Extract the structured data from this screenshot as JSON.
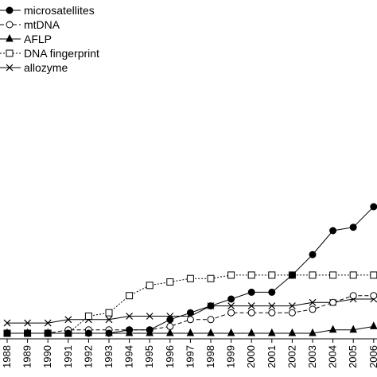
{
  "chart_data": {
    "type": "line",
    "title": "",
    "xlabel": "",
    "ylabel": "",
    "x": [
      1988,
      1989,
      1990,
      1991,
      1992,
      1993,
      1994,
      1995,
      1996,
      1997,
      1998,
      1999,
      2000,
      2001,
      2002,
      2003,
      2004,
      2005,
      2006
    ],
    "x_tick_labels": [
      "1988",
      "1989",
      "1990",
      "1991",
      "1992",
      "1993",
      "1994",
      "1995",
      "1996",
      "1997",
      "1998",
      "1999",
      "2000",
      "2001",
      "2002",
      "2003",
      "2004",
      "2005",
      "2006"
    ],
    "ylim": [
      0,
      68
    ],
    "grid": false,
    "legend_position": "top-left",
    "series": [
      {
        "name": "microsatellites",
        "marker": "filled-circle",
        "line": "solid",
        "values": [
          0,
          0,
          0,
          0,
          0,
          0,
          1,
          1,
          4,
          6,
          8,
          10,
          12,
          12,
          17,
          23,
          30,
          31,
          37
        ]
      },
      {
        "name": "mtDNA",
        "marker": "open-circle",
        "line": "dashed",
        "values": [
          0,
          0,
          0,
          1,
          1,
          1,
          1,
          1,
          2,
          4,
          4,
          6,
          6,
          6,
          6,
          7,
          9,
          11,
          11
        ]
      },
      {
        "name": "AFLP",
        "marker": "filled-triangle",
        "line": "solid",
        "values": [
          0,
          0,
          0,
          0,
          0,
          0,
          0,
          0,
          0,
          0,
          0,
          0,
          0,
          0,
          0,
          0,
          1,
          1,
          2
        ]
      },
      {
        "name": "DNA fingerprint",
        "marker": "open-square",
        "line": "dotted",
        "values": [
          0,
          0,
          0,
          0,
          5,
          6,
          11,
          14,
          15,
          16,
          16,
          17,
          17,
          17,
          17,
          17,
          17,
          17,
          17
        ]
      },
      {
        "name": "allozyme",
        "marker": "cross",
        "line": "solid",
        "values": [
          3,
          3,
          3,
          4,
          4,
          4,
          5,
          5,
          5,
          5,
          8,
          8,
          8,
          8,
          8,
          9,
          9,
          10,
          10
        ]
      }
    ]
  },
  "colors": {
    "ink": "#000000",
    "background": "#ffffff"
  }
}
